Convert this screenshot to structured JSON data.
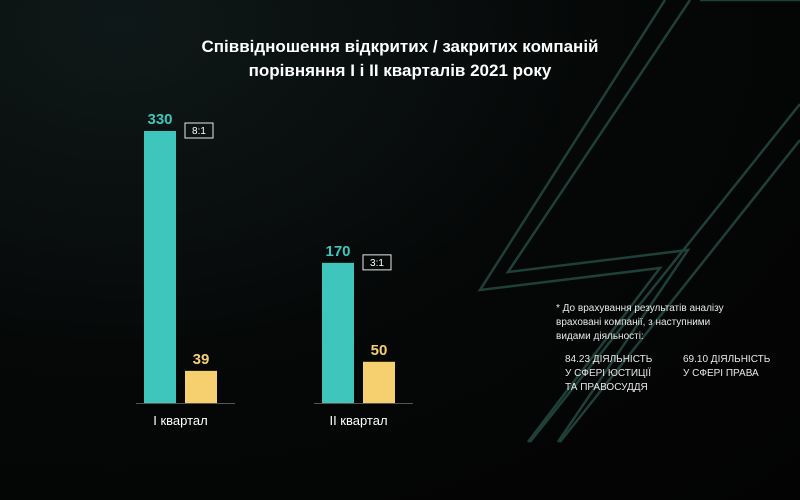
{
  "title_line1": "Співвідношення відкритих / закритих компаній",
  "title_line2": "порівняння І і ІІ кварталів 2021 року",
  "colors": {
    "open": "#3ec6bd",
    "closed": "#f6d06e",
    "deco": "#1f3f39"
  },
  "chart_data": {
    "type": "bar",
    "categories": [
      "І квартал",
      "ІІ квартал"
    ],
    "series": [
      {
        "values": [
          330,
          170
        ]
      },
      {
        "values": [
          39,
          50
        ]
      }
    ],
    "ratios": [
      "8:1",
      "3:1"
    ],
    "ylim": [
      0,
      330
    ]
  },
  "note": {
    "text": "* До врахування результатів аналізу\nврахованi компанії, з наступними\nвидами діяльності:",
    "items": [
      "84.23 ДІЯЛЬНІСТЬ\nУ СФЕРІ ЮСТИЦІЇ\nТА ПРАВОСУДДЯ",
      "69.10 ДІЯЛЬНІСТЬ\nУ СФЕРІ ПРАВА"
    ]
  }
}
